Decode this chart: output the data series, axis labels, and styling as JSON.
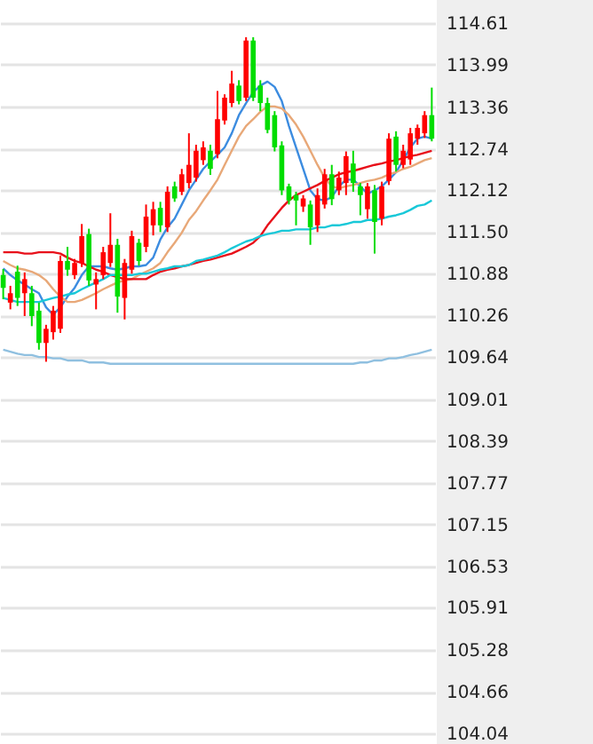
{
  "chart_data": {
    "type": "candlestick",
    "categories": [
      null,
      null,
      null,
      null,
      null,
      null,
      null,
      null,
      null,
      null,
      null,
      null,
      null,
      null,
      null,
      null,
      null,
      null,
      null,
      null,
      null,
      null,
      null,
      null,
      null,
      null,
      null,
      null,
      null,
      null,
      null,
      null,
      null,
      null,
      null,
      null,
      null,
      null,
      null,
      null,
      null,
      null,
      null,
      null,
      null,
      null,
      null,
      null,
      null,
      null,
      null,
      null,
      null,
      null,
      null,
      null,
      null,
      null,
      null,
      null,
      null
    ],
    "ohlc": [
      [
        110.86,
        110.95,
        110.5,
        110.67
      ],
      [
        110.45,
        110.7,
        110.35,
        110.59
      ],
      [
        110.91,
        111.0,
        110.4,
        110.52
      ],
      [
        110.59,
        110.9,
        110.25,
        110.8
      ],
      [
        110.59,
        110.7,
        110.1,
        110.25
      ],
      [
        110.33,
        110.45,
        109.75,
        109.85
      ],
      [
        109.85,
        110.12,
        109.57,
        110.06
      ],
      [
        110.01,
        110.4,
        109.9,
        110.33
      ],
      [
        110.06,
        111.15,
        110.0,
        111.07
      ],
      [
        111.07,
        111.28,
        110.85,
        110.94
      ],
      [
        110.86,
        111.1,
        110.8,
        111.04
      ],
      [
        111.04,
        111.62,
        110.98,
        111.44
      ],
      [
        111.47,
        111.55,
        110.7,
        110.78
      ],
      [
        110.72,
        110.9,
        110.35,
        110.8
      ],
      [
        110.86,
        111.28,
        110.8,
        111.2
      ],
      [
        111.04,
        111.78,
        110.98,
        111.31
      ],
      [
        111.31,
        111.4,
        110.3,
        110.54
      ],
      [
        110.52,
        111.1,
        110.2,
        111.04
      ],
      [
        110.94,
        111.52,
        110.88,
        111.44
      ],
      [
        111.34,
        111.4,
        111.0,
        111.07
      ],
      [
        111.28,
        111.91,
        111.2,
        111.73
      ],
      [
        111.6,
        111.95,
        111.45,
        111.84
      ],
      [
        111.86,
        111.95,
        111.5,
        111.6
      ],
      [
        111.57,
        112.18,
        111.5,
        112.1
      ],
      [
        112.18,
        112.25,
        111.95,
        112.0
      ],
      [
        112.1,
        112.44,
        112.05,
        112.36
      ],
      [
        112.23,
        112.97,
        112.15,
        112.5
      ],
      [
        112.31,
        112.8,
        112.25,
        112.71
      ],
      [
        112.57,
        112.85,
        112.5,
        112.76
      ],
      [
        112.71,
        112.8,
        112.35,
        112.44
      ],
      [
        112.66,
        113.6,
        112.6,
        113.18
      ],
      [
        113.16,
        113.55,
        113.1,
        113.5
      ],
      [
        113.42,
        113.9,
        113.36,
        113.71
      ],
      [
        113.68,
        113.76,
        113.4,
        113.45
      ],
      [
        113.5,
        114.4,
        113.45,
        114.35
      ],
      [
        114.35,
        114.4,
        113.45,
        113.5
      ],
      [
        113.68,
        113.76,
        113.3,
        113.42
      ],
      [
        113.42,
        113.5,
        112.97,
        113.02
      ],
      [
        113.24,
        113.3,
        112.7,
        112.76
      ],
      [
        112.79,
        112.85,
        112.05,
        112.12
      ],
      [
        112.18,
        112.22,
        111.91,
        111.97
      ],
      [
        112.05,
        112.1,
        111.6,
        111.97
      ],
      [
        111.88,
        112.05,
        111.8,
        112.0
      ],
      [
        111.91,
        111.97,
        111.31,
        111.57
      ],
      [
        111.6,
        112.15,
        111.5,
        112.05
      ],
      [
        111.91,
        112.44,
        111.85,
        112.36
      ],
      [
        112.36,
        112.5,
        111.9,
        111.99
      ],
      [
        112.12,
        112.4,
        112.05,
        112.31
      ],
      [
        112.23,
        112.7,
        112.05,
        112.63
      ],
      [
        112.52,
        112.71,
        112.1,
        112.23
      ],
      [
        112.18,
        112.23,
        111.75,
        112.05
      ],
      [
        111.84,
        112.23,
        111.7,
        112.18
      ],
      [
        112.12,
        112.2,
        111.18,
        111.65
      ],
      [
        111.7,
        112.25,
        111.6,
        112.18
      ],
      [
        112.26,
        112.97,
        112.2,
        112.89
      ],
      [
        112.92,
        113.0,
        112.4,
        112.5
      ],
      [
        112.5,
        112.8,
        112.45,
        112.71
      ],
      [
        112.58,
        113.05,
        112.5,
        112.97
      ],
      [
        112.89,
        113.1,
        112.8,
        113.05
      ],
      [
        112.97,
        113.3,
        112.9,
        113.24
      ],
      [
        113.24,
        113.65,
        112.85,
        112.89
      ]
    ],
    "colors": [
      "#00dd00",
      "#ff0000",
      "#00dd00",
      "#ff0000",
      "#00dd00",
      "#00dd00",
      "#ff0000",
      "#ff0000",
      "#ff0000",
      "#00dd00",
      "#ff0000",
      "#ff0000",
      "#00dd00",
      "#ff0000",
      "#ff0000",
      "#ff0000",
      "#00dd00",
      "#ff0000",
      "#ff0000",
      "#00dd00",
      "#ff0000",
      "#ff0000",
      "#00dd00",
      "#ff0000",
      "#00dd00",
      "#ff0000",
      "#ff0000",
      "#ff0000",
      "#ff0000",
      "#00dd00",
      "#ff0000",
      "#ff0000",
      "#ff0000",
      "#00dd00",
      "#ff0000",
      "#00dd00",
      "#00dd00",
      "#00dd00",
      "#00dd00",
      "#00dd00",
      "#00dd00",
      "#00dd00",
      "#ff0000",
      "#00dd00",
      "#ff0000",
      "#ff0000",
      "#00dd00",
      "#ff0000",
      "#ff0000",
      "#00dd00",
      "#00dd00",
      "#ff0000",
      "#00dd00",
      "#ff0000",
      "#ff0000",
      "#00dd00",
      "#ff0000",
      "#ff0000",
      "#ff0000",
      "#ff0000",
      "#00dd00"
    ],
    "series": [
      {
        "type": "line",
        "color": "#3c8ce0",
        "values": [
          110.96,
          110.86,
          110.78,
          110.72,
          110.65,
          110.59,
          110.38,
          110.27,
          110.38,
          110.54,
          110.67,
          110.86,
          110.99,
          110.99,
          110.99,
          110.96,
          110.94,
          110.96,
          110.99,
          110.99,
          111.01,
          111.12,
          111.39,
          111.57,
          111.7,
          111.91,
          112.12,
          112.28,
          112.44,
          112.55,
          112.65,
          112.76,
          112.97,
          113.24,
          113.42,
          113.58,
          113.68,
          113.74,
          113.66,
          113.45,
          113.08,
          112.76,
          112.44,
          112.12,
          111.99,
          111.97,
          112.02,
          112.18,
          112.28,
          112.28,
          112.18,
          112.07,
          112.12,
          112.18,
          112.28,
          112.39,
          112.57,
          112.76,
          112.89,
          112.92,
          112.89
        ]
      },
      {
        "type": "line",
        "color": "#e8a878",
        "values": [
          111.07,
          111.01,
          110.96,
          110.94,
          110.91,
          110.86,
          110.78,
          110.65,
          110.54,
          110.46,
          110.46,
          110.49,
          110.54,
          110.59,
          110.65,
          110.7,
          110.75,
          110.78,
          110.8,
          110.86,
          110.91,
          110.96,
          111.04,
          111.2,
          111.34,
          111.49,
          111.68,
          111.81,
          111.97,
          112.12,
          112.28,
          112.5,
          112.71,
          112.92,
          113.08,
          113.18,
          113.29,
          113.37,
          113.37,
          113.34,
          113.24,
          113.1,
          112.92,
          112.71,
          112.5,
          112.31,
          112.18,
          112.15,
          112.18,
          112.2,
          112.23,
          112.26,
          112.28,
          112.31,
          112.36,
          112.39,
          112.44,
          112.47,
          112.52,
          112.57,
          112.6
        ]
      },
      {
        "type": "line",
        "color": "#e8101a",
        "values": [
          111.2,
          111.2,
          111.2,
          111.18,
          111.18,
          111.2,
          111.2,
          111.2,
          111.18,
          111.12,
          111.07,
          111.04,
          110.99,
          110.94,
          110.91,
          110.86,
          110.83,
          110.8,
          110.8,
          110.8,
          110.8,
          110.86,
          110.91,
          110.94,
          110.96,
          110.99,
          111.01,
          111.04,
          111.07,
          111.09,
          111.12,
          111.15,
          111.18,
          111.23,
          111.28,
          111.34,
          111.44,
          111.6,
          111.73,
          111.86,
          111.97,
          112.05,
          112.1,
          112.15,
          112.2,
          112.26,
          112.31,
          112.36,
          112.39,
          112.41,
          112.44,
          112.47,
          112.5,
          112.52,
          112.55,
          112.57,
          112.6,
          112.63,
          112.65,
          112.68,
          112.71
        ]
      },
      {
        "type": "line",
        "color": "#18c8d8",
        "values": [
          110.52,
          110.49,
          110.46,
          110.46,
          110.46,
          110.46,
          110.49,
          110.52,
          110.54,
          110.57,
          110.59,
          110.65,
          110.7,
          110.75,
          110.8,
          110.86,
          110.86,
          110.86,
          110.86,
          110.88,
          110.88,
          110.91,
          110.94,
          110.96,
          110.99,
          110.99,
          111.01,
          111.07,
          111.09,
          111.12,
          111.15,
          111.2,
          111.26,
          111.31,
          111.36,
          111.39,
          111.44,
          111.47,
          111.49,
          111.52,
          111.52,
          111.54,
          111.54,
          111.54,
          111.57,
          111.57,
          111.6,
          111.6,
          111.62,
          111.65,
          111.65,
          111.68,
          111.68,
          111.7,
          111.73,
          111.75,
          111.78,
          111.83,
          111.89,
          111.91,
          111.97
        ]
      },
      {
        "type": "line",
        "color": "#90c0e0",
        "values": [
          109.75,
          109.72,
          109.69,
          109.67,
          109.67,
          109.64,
          109.64,
          109.62,
          109.62,
          109.59,
          109.59,
          109.59,
          109.56,
          109.56,
          109.56,
          109.54,
          109.54,
          109.54,
          109.54,
          109.54,
          109.54,
          109.54,
          109.54,
          109.54,
          109.54,
          109.54,
          109.54,
          109.54,
          109.54,
          109.54,
          109.54,
          109.54,
          109.54,
          109.54,
          109.54,
          109.54,
          109.54,
          109.54,
          109.54,
          109.54,
          109.54,
          109.54,
          109.54,
          109.54,
          109.54,
          109.54,
          109.54,
          109.54,
          109.54,
          109.54,
          109.56,
          109.56,
          109.59,
          109.59,
          109.62,
          109.62,
          109.64,
          109.67,
          109.69,
          109.72,
          109.75
        ]
      }
    ],
    "ylim": [
      104.04,
      114.61
    ],
    "yticks": [
      114.61,
      113.99,
      113.36,
      112.74,
      112.12,
      {
        "value": 111.5,
        "label": "111.50"
      },
      110.88,
      110.26,
      109.64,
      109.01,
      108.39,
      107.77,
      107.15,
      106.53,
      105.91,
      105.28,
      104.66,
      104.04
    ],
    "grid": "y",
    "tick_labels": "y"
  }
}
